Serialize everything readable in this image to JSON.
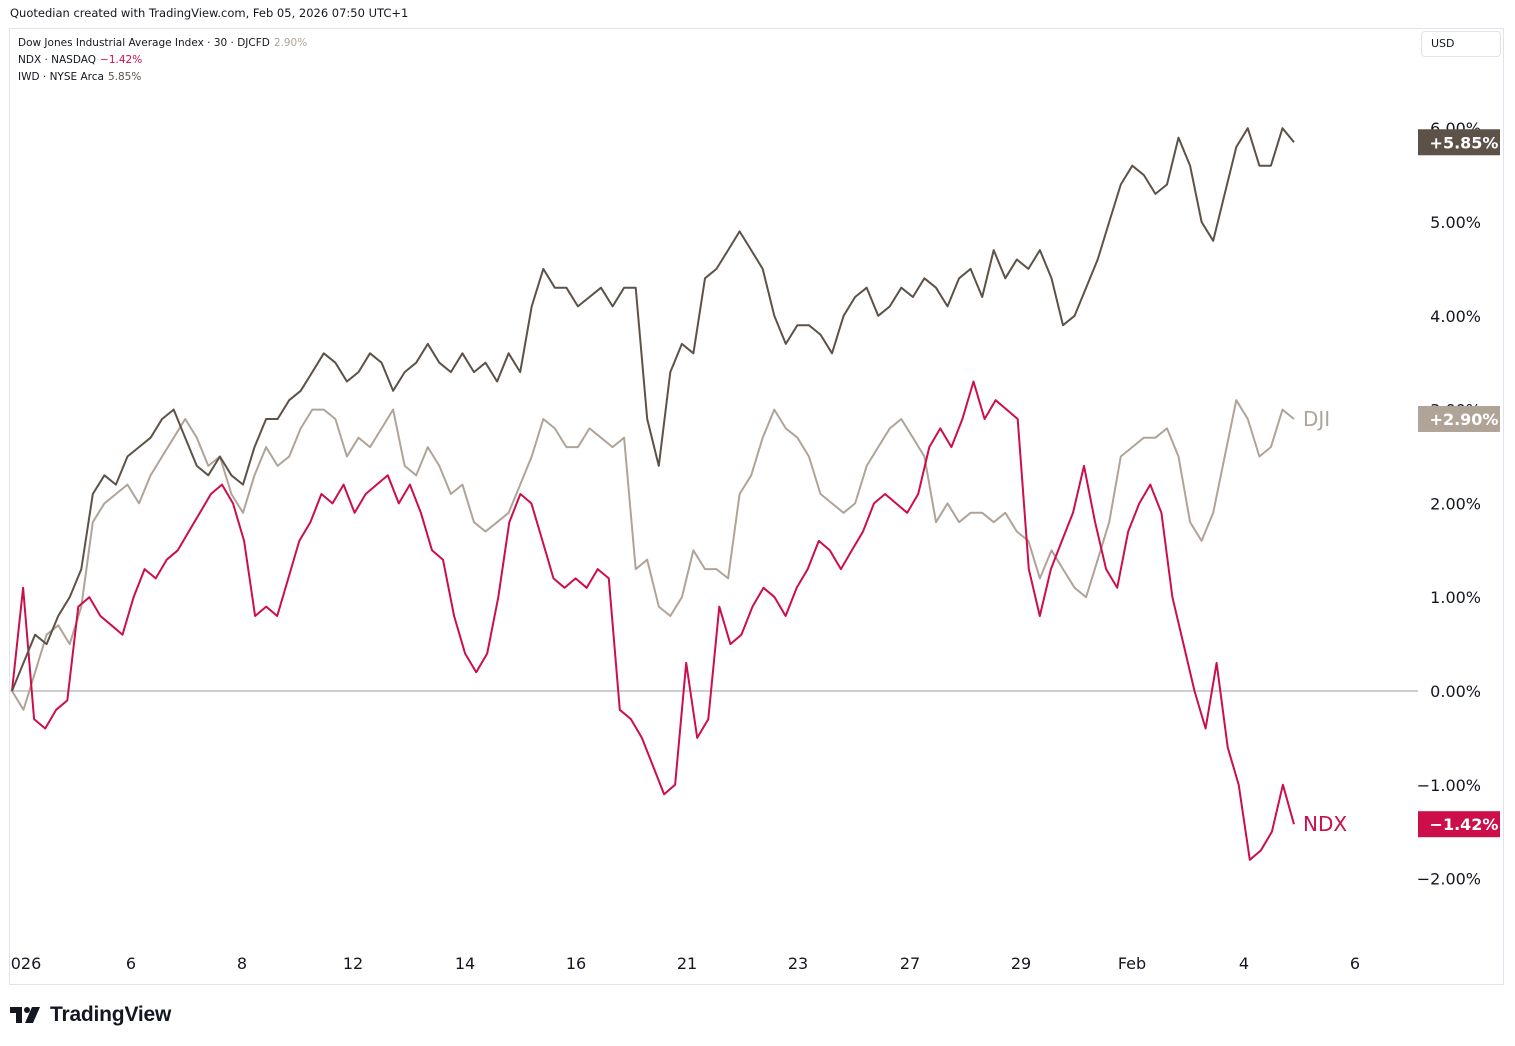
{
  "header": {
    "attribution": "Quotedian created with TradingView.com, Feb 05, 2026 07:50 UTC+1"
  },
  "currency": "USD",
  "brand": {
    "name": "TradingView"
  },
  "colors": {
    "iwd": "#5d5247",
    "dji": "#b0a498",
    "ndx": "#cc0e4b",
    "zero": "#9e9e9e"
  },
  "legend": [
    {
      "symbol": "Dow Jones Industrial Average Index · 30 · DJCFD",
      "value": "2.90%",
      "color": "#b0a498"
    },
    {
      "symbol": "NDX · NASDAQ",
      "value": "−1.42%",
      "color": "#cc0e4b"
    },
    {
      "symbol": "IWD · NYSE Arca",
      "value": "5.85%",
      "color": "#5d5247"
    }
  ],
  "chart_data": {
    "type": "line",
    "title": "",
    "xlabel": "",
    "ylabel": "",
    "x_ticks": [
      "026",
      "6",
      "8",
      "12",
      "14",
      "16",
      "21",
      "23",
      "27",
      "29",
      "Feb",
      "4",
      "6"
    ],
    "y_ticks": [
      "6.00%",
      "5.00%",
      "4.00%",
      "3.00%",
      "2.00%",
      "1.00%",
      "0.00%",
      "−1.00%",
      "−2.00%"
    ],
    "ylim": [
      -2.5,
      6.9
    ],
    "grid": false,
    "series": [
      {
        "name": "IWD",
        "line_label": "",
        "last_label": "+5.85%",
        "color": "#5d5247",
        "values": [
          0.0,
          0.3,
          0.6,
          0.5,
          0.8,
          1.0,
          1.3,
          2.1,
          2.3,
          2.2,
          2.5,
          2.6,
          2.7,
          2.9,
          3.0,
          2.7,
          2.4,
          2.3,
          2.5,
          2.3,
          2.2,
          2.6,
          2.9,
          2.9,
          3.1,
          3.2,
          3.4,
          3.6,
          3.5,
          3.3,
          3.4,
          3.6,
          3.5,
          3.2,
          3.4,
          3.5,
          3.7,
          3.5,
          3.4,
          3.6,
          3.4,
          3.5,
          3.3,
          3.6,
          3.4,
          4.1,
          4.5,
          4.3,
          4.3,
          4.1,
          4.2,
          4.3,
          4.1,
          4.3,
          4.3,
          2.9,
          2.4,
          3.4,
          3.7,
          3.6,
          4.4,
          4.5,
          4.7,
          4.9,
          4.7,
          4.5,
          4.0,
          3.7,
          3.9,
          3.9,
          3.8,
          3.6,
          4.0,
          4.2,
          4.3,
          4.0,
          4.1,
          4.3,
          4.2,
          4.4,
          4.3,
          4.1,
          4.4,
          4.5,
          4.2,
          4.7,
          4.4,
          4.6,
          4.5,
          4.7,
          4.4,
          3.9,
          4.0,
          4.3,
          4.6,
          5.0,
          5.4,
          5.6,
          5.5,
          5.3,
          5.4,
          5.9,
          5.6,
          5.0,
          4.8,
          5.3,
          5.8,
          6.0,
          5.6,
          5.6,
          6.0,
          5.85
        ]
      },
      {
        "name": "DJI",
        "line_label": "DJI",
        "last_label": "+2.90%",
        "color": "#b0a498",
        "values": [
          0.0,
          -0.2,
          0.2,
          0.6,
          0.7,
          0.5,
          0.9,
          1.8,
          2.0,
          2.1,
          2.2,
          2.0,
          2.3,
          2.5,
          2.7,
          2.9,
          2.7,
          2.4,
          2.5,
          2.1,
          1.9,
          2.3,
          2.6,
          2.4,
          2.5,
          2.8,
          3.0,
          3.0,
          2.9,
          2.5,
          2.7,
          2.6,
          2.8,
          3.0,
          2.4,
          2.3,
          2.6,
          2.4,
          2.1,
          2.2,
          1.8,
          1.7,
          1.8,
          1.9,
          2.2,
          2.5,
          2.9,
          2.8,
          2.6,
          2.6,
          2.8,
          2.7,
          2.6,
          2.7,
          1.3,
          1.4,
          0.9,
          0.8,
          1.0,
          1.5,
          1.3,
          1.3,
          1.2,
          2.1,
          2.3,
          2.7,
          3.0,
          2.8,
          2.7,
          2.5,
          2.1,
          2.0,
          1.9,
          2.0,
          2.4,
          2.6,
          2.8,
          2.9,
          2.7,
          2.5,
          1.8,
          2.0,
          1.8,
          1.9,
          1.9,
          1.8,
          1.9,
          1.7,
          1.6,
          1.2,
          1.5,
          1.3,
          1.1,
          1.0,
          1.4,
          1.8,
          2.5,
          2.6,
          2.7,
          2.7,
          2.8,
          2.5,
          1.8,
          1.6,
          1.9,
          2.5,
          3.1,
          2.9,
          2.5,
          2.6,
          3.0,
          2.9
        ]
      },
      {
        "name": "NDX",
        "line_label": "NDX",
        "last_label": "−1.42%",
        "color": "#cc0e4b",
        "values": [
          0.0,
          1.1,
          -0.3,
          -0.4,
          -0.2,
          -0.1,
          0.9,
          1.0,
          0.8,
          0.7,
          0.6,
          1.0,
          1.3,
          1.2,
          1.4,
          1.5,
          1.7,
          1.9,
          2.1,
          2.2,
          2.0,
          1.6,
          0.8,
          0.9,
          0.8,
          1.2,
          1.6,
          1.8,
          2.1,
          2.0,
          2.2,
          1.9,
          2.1,
          2.2,
          2.3,
          2.0,
          2.2,
          1.9,
          1.5,
          1.4,
          0.8,
          0.4,
          0.2,
          0.4,
          1.0,
          1.8,
          2.1,
          2.0,
          1.6,
          1.2,
          1.1,
          1.2,
          1.1,
          1.3,
          1.2,
          -0.2,
          -0.3,
          -0.5,
          -0.8,
          -1.1,
          -1.0,
          0.3,
          -0.5,
          -0.3,
          0.9,
          0.5,
          0.6,
          0.9,
          1.1,
          1.0,
          0.8,
          1.1,
          1.3,
          1.6,
          1.5,
          1.3,
          1.5,
          1.7,
          2.0,
          2.1,
          2.0,
          1.9,
          2.1,
          2.6,
          2.8,
          2.6,
          2.9,
          3.3,
          2.9,
          3.1,
          3.0,
          2.9,
          1.3,
          0.8,
          1.3,
          1.6,
          1.9,
          2.4,
          1.8,
          1.3,
          1.1,
          1.7,
          2.0,
          2.2,
          1.9,
          1.0,
          0.5,
          0.0,
          -0.4,
          0.3,
          -0.6,
          -1.0,
          -1.8,
          -1.7,
          -1.5,
          -1.0,
          -1.42
        ]
      }
    ]
  }
}
